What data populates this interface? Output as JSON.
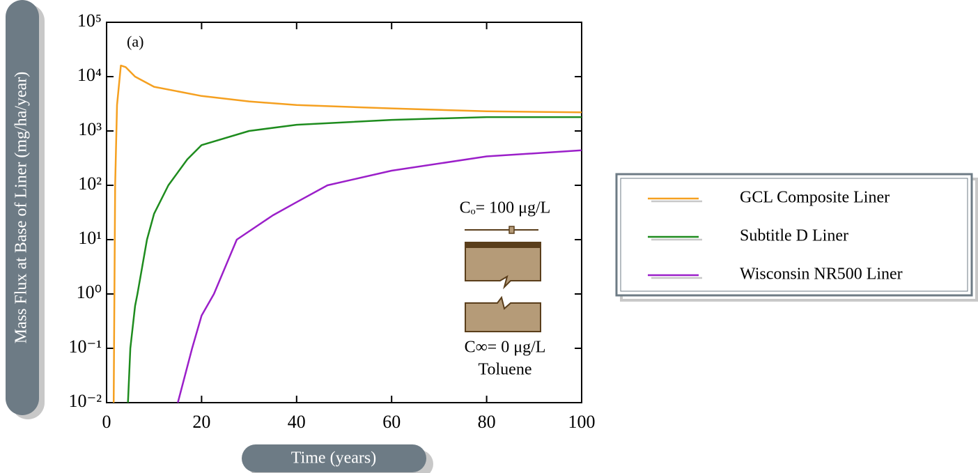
{
  "chart_data": {
    "type": "line",
    "ylabel": "Mass Flux at Base of Liner (mg/ha/year)",
    "xlabel": "Time (years)",
    "panel_label": "(a)",
    "annotations": {
      "top": "Cₒ= 100 μg/L",
      "bottom": "C∞= 0 μg/L",
      "compound": "Toluene"
    },
    "xlim": [
      0,
      100
    ],
    "xticks": [
      0,
      20,
      40,
      60,
      80,
      100
    ],
    "ylim": [
      0.01,
      100000
    ],
    "yscale": "log",
    "yticks": [
      {
        "value": 0.01,
        "label": "10⁻²"
      },
      {
        "value": 0.1,
        "label": "10⁻¹"
      },
      {
        "value": 1,
        "label": "10⁰"
      },
      {
        "value": 10,
        "label": "10¹"
      },
      {
        "value": 100,
        "label": "10²"
      },
      {
        "value": 1000,
        "label": "10³"
      },
      {
        "value": 10000,
        "label": "10⁴"
      },
      {
        "value": 100000,
        "label": "10⁵"
      }
    ],
    "legend": "right",
    "series": [
      {
        "name": "GCL Composite Liner",
        "color": "#f5a020",
        "x": [
          1.5,
          1.8,
          2.2,
          3,
          4,
          6,
          10,
          20,
          30,
          40,
          60,
          80,
          100
        ],
        "values": [
          0.01,
          100,
          3000,
          16000,
          15000,
          10000,
          6500,
          4400,
          3500,
          3000,
          2600,
          2300,
          2200
        ]
      },
      {
        "name": "Subtitle D Liner",
        "color": "#1e8c1e",
        "x": [
          4.5,
          5,
          6,
          6.5,
          8.5,
          10,
          13,
          17,
          20,
          30,
          40,
          60,
          80,
          100
        ],
        "values": [
          0.01,
          0.1,
          0.6,
          1,
          10,
          30,
          100,
          300,
          550,
          1000,
          1300,
          1600,
          1800,
          1800
        ]
      },
      {
        "name": "Wisconsin NR500 Liner",
        "color": "#9b1fc9",
        "x": [
          15,
          18,
          20,
          22.6,
          27.4,
          35,
          40,
          46.5,
          60,
          80,
          100
        ],
        "values": [
          0.01,
          0.1,
          0.4,
          1,
          10,
          28,
          49,
          100,
          186,
          340,
          440
        ]
      }
    ]
  }
}
